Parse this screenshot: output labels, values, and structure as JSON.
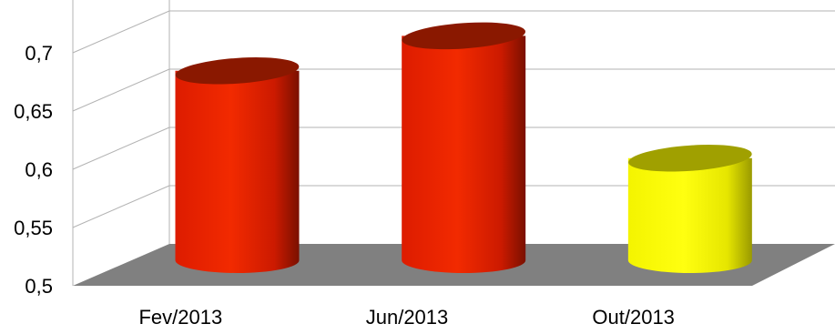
{
  "chart_data": {
    "type": "bar",
    "style": "3d-cylinder",
    "title": "",
    "xlabel": "",
    "ylabel": "",
    "categories": [
      "Fev/2013",
      "Jun/2013",
      "Out/2013"
    ],
    "values": [
      0.665,
      0.695,
      0.59
    ],
    "ylim": [
      0.5,
      0.75
    ],
    "yticks": [
      0.5,
      0.55,
      0.6,
      0.65,
      0.7
    ],
    "ytick_labels": [
      "0,5",
      "0,55",
      "0,6",
      "0,65",
      "0,7"
    ],
    "grid": true,
    "legend": "none",
    "bar_colors": [
      "#ee2200",
      "#ee2200",
      "#ffff00"
    ],
    "bar_top_colors": [
      "#8a1800",
      "#8a1800",
      "#a0a000"
    ],
    "floor_color": "#808080"
  }
}
